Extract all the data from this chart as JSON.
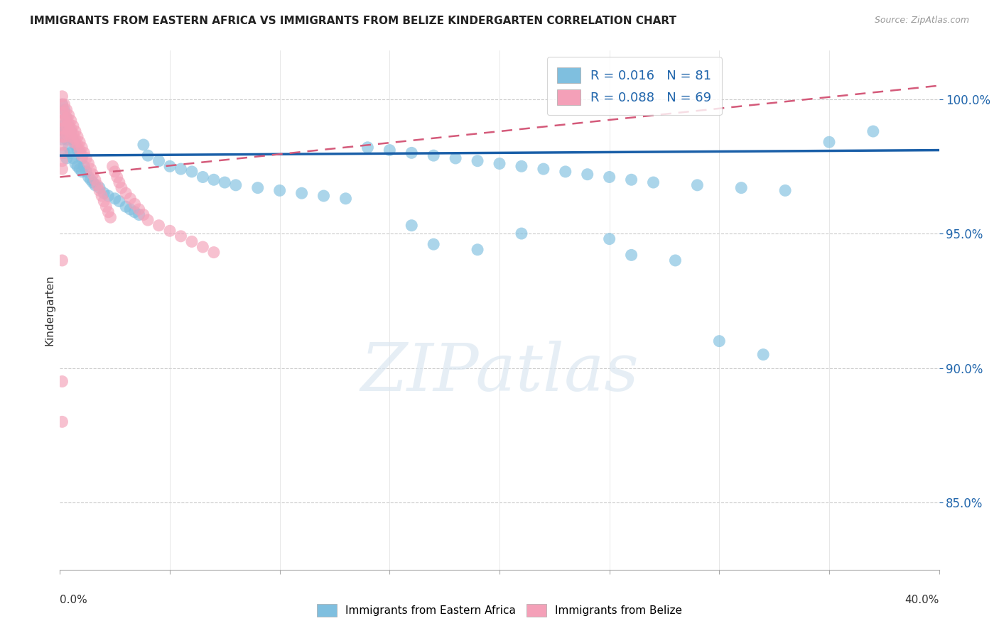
{
  "title": "IMMIGRANTS FROM EASTERN AFRICA VS IMMIGRANTS FROM BELIZE KINDERGARTEN CORRELATION CHART",
  "source": "Source: ZipAtlas.com",
  "ylabel": "Kindergarten",
  "legend_label_1": "Immigrants from Eastern Africa",
  "legend_label_2": "Immigrants from Belize",
  "R1": 0.016,
  "N1": 81,
  "R2": 0.088,
  "N2": 69,
  "blue_color": "#7fbfdf",
  "pink_color": "#f4a0b8",
  "blue_line_color": "#1a5fa8",
  "pink_line_color": "#d45a7a",
  "background_color": "#ffffff",
  "xlim": [
    0.0,
    0.4
  ],
  "ylim": [
    0.825,
    1.018
  ],
  "yticks": [
    0.85,
    0.9,
    0.95,
    1.0
  ],
  "ytick_labels": [
    "85.0%",
    "90.0%",
    "95.0%",
    "100.0%"
  ],
  "blue_trend_x": [
    0.0,
    0.4
  ],
  "blue_trend_y": [
    0.979,
    0.981
  ],
  "pink_trend_x": [
    0.0,
    0.4
  ],
  "pink_trend_y": [
    0.971,
    1.005
  ],
  "watermark_text": "ZIPatlas",
  "blue_x": [
    0.001,
    0.001,
    0.001,
    0.002,
    0.002,
    0.002,
    0.003,
    0.003,
    0.003,
    0.004,
    0.004,
    0.005,
    0.005,
    0.006,
    0.006,
    0.007,
    0.007,
    0.008,
    0.008,
    0.009,
    0.009,
    0.01,
    0.01,
    0.011,
    0.012,
    0.013,
    0.014,
    0.015,
    0.016,
    0.018,
    0.02,
    0.022,
    0.025,
    0.027,
    0.03,
    0.032,
    0.034,
    0.036,
    0.038,
    0.04,
    0.045,
    0.05,
    0.055,
    0.06,
    0.065,
    0.07,
    0.075,
    0.08,
    0.09,
    0.1,
    0.11,
    0.12,
    0.13,
    0.14,
    0.15,
    0.16,
    0.17,
    0.18,
    0.19,
    0.2,
    0.21,
    0.22,
    0.23,
    0.24,
    0.25,
    0.26,
    0.27,
    0.29,
    0.31,
    0.33,
    0.35,
    0.37,
    0.16,
    0.21,
    0.25,
    0.17,
    0.19,
    0.26,
    0.28,
    0.3,
    0.32
  ],
  "blue_y": [
    0.998,
    0.99,
    0.985,
    0.996,
    0.988,
    0.98,
    0.993,
    0.985,
    0.978,
    0.99,
    0.982,
    0.988,
    0.98,
    0.985,
    0.978,
    0.983,
    0.976,
    0.981,
    0.975,
    0.98,
    0.974,
    0.978,
    0.973,
    0.975,
    0.973,
    0.971,
    0.97,
    0.969,
    0.968,
    0.967,
    0.965,
    0.964,
    0.963,
    0.962,
    0.96,
    0.959,
    0.958,
    0.957,
    0.983,
    0.979,
    0.977,
    0.975,
    0.974,
    0.973,
    0.971,
    0.97,
    0.969,
    0.968,
    0.967,
    0.966,
    0.965,
    0.964,
    0.963,
    0.982,
    0.981,
    0.98,
    0.979,
    0.978,
    0.977,
    0.976,
    0.975,
    0.974,
    0.973,
    0.972,
    0.971,
    0.97,
    0.969,
    0.968,
    0.967,
    0.966,
    0.984,
    0.988,
    0.953,
    0.95,
    0.948,
    0.946,
    0.944,
    0.942,
    0.94,
    0.91,
    0.905
  ],
  "pink_x": [
    0.001,
    0.001,
    0.001,
    0.001,
    0.001,
    0.001,
    0.001,
    0.001,
    0.001,
    0.001,
    0.002,
    0.002,
    0.002,
    0.002,
    0.002,
    0.003,
    0.003,
    0.003,
    0.003,
    0.004,
    0.004,
    0.004,
    0.005,
    0.005,
    0.005,
    0.006,
    0.006,
    0.006,
    0.007,
    0.007,
    0.008,
    0.008,
    0.009,
    0.009,
    0.01,
    0.01,
    0.011,
    0.012,
    0.013,
    0.014,
    0.015,
    0.016,
    0.017,
    0.018,
    0.019,
    0.02,
    0.021,
    0.022,
    0.023,
    0.024,
    0.025,
    0.026,
    0.027,
    0.028,
    0.03,
    0.032,
    0.034,
    0.036,
    0.038,
    0.04,
    0.045,
    0.05,
    0.055,
    0.06,
    0.065,
    0.07,
    0.001,
    0.001,
    0.001
  ],
  "pink_y": [
    1.001,
    0.998,
    0.995,
    0.992,
    0.989,
    0.986,
    0.983,
    0.98,
    0.977,
    0.974,
    0.998,
    0.995,
    0.992,
    0.989,
    0.986,
    0.996,
    0.993,
    0.99,
    0.987,
    0.994,
    0.991,
    0.988,
    0.992,
    0.989,
    0.986,
    0.99,
    0.987,
    0.984,
    0.988,
    0.985,
    0.986,
    0.983,
    0.984,
    0.981,
    0.982,
    0.979,
    0.98,
    0.978,
    0.976,
    0.974,
    0.972,
    0.97,
    0.968,
    0.966,
    0.964,
    0.962,
    0.96,
    0.958,
    0.956,
    0.975,
    0.973,
    0.971,
    0.969,
    0.967,
    0.965,
    0.963,
    0.961,
    0.959,
    0.957,
    0.955,
    0.953,
    0.951,
    0.949,
    0.947,
    0.945,
    0.943,
    0.94,
    0.895,
    0.88
  ]
}
